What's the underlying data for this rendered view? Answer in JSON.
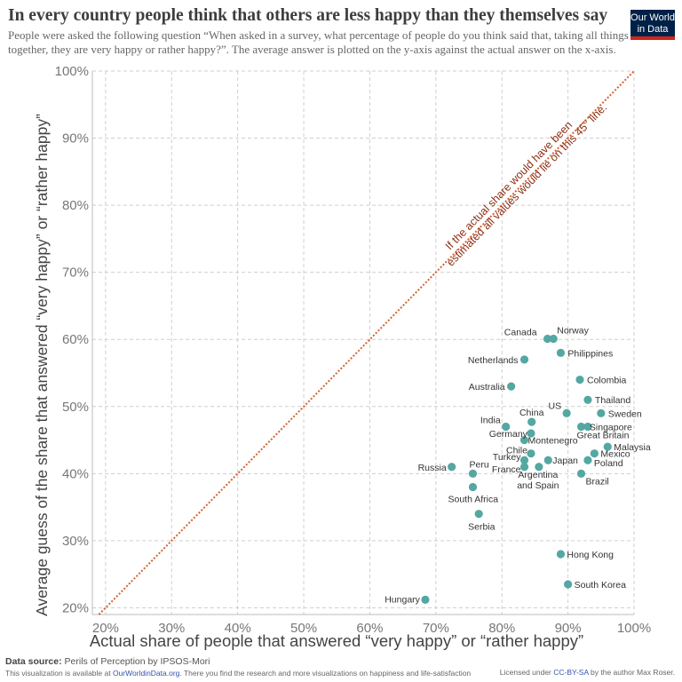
{
  "header": {
    "title": "In every country people think that others are less happy than they themselves say",
    "subtitle": "People were asked the following question “When asked in a survey, what percentage of people do you think said that, taking all things together, they are very happy or rather happy?”. The average answer is plotted on the y-axis against the actual answer on the x-axis.",
    "logo_line1": "Our World",
    "logo_line2": "in Data"
  },
  "footer": {
    "source_label": "Data source:",
    "source_text": "Perils of Perception by IPSOS-Mori",
    "avail_prefix": "This visualization is available at",
    "avail_link": "OurWorldinData.org",
    "avail_suffix": ". There you find the research and more visualizations on happiness and life-satisfaction",
    "license_prefix": "Licensed under",
    "license_link": "CC-BY-SA",
    "license_suffix": "by the author Max Roser."
  },
  "colors": {
    "point": "#55a7a2",
    "diagonal": "#d4622e",
    "annotation": "#8b2e12",
    "grid": "#cfcfcf"
  },
  "chart_data": {
    "type": "scatter",
    "xlabel": "Actual share of people that answered “very happy” or “rather happy”",
    "ylabel": "Average guess of the share that answered “very happy” or “rather happy”",
    "xlim": [
      18,
      100
    ],
    "ylim": [
      19,
      100
    ],
    "x_ticks": [
      20,
      30,
      40,
      50,
      60,
      70,
      80,
      90,
      100
    ],
    "y_ticks": [
      20,
      30,
      40,
      50,
      60,
      70,
      80,
      90,
      100
    ],
    "tick_suffix": "%",
    "grid": true,
    "reference_line": {
      "type": "y=x",
      "annotation_line1": "If the actual share would have been",
      "annotation_line2": "estimated all values would lie on this 45° line."
    },
    "points": [
      {
        "name": "Canada",
        "x": 86.9,
        "y": 60.1
      },
      {
        "name": "Norway",
        "x": 87.8,
        "y": 60.1
      },
      {
        "name": "Philippines",
        "x": 88.9,
        "y": 58.0
      },
      {
        "name": "Netherlands",
        "x": 83.4,
        "y": 57.0
      },
      {
        "name": "Australia",
        "x": 81.4,
        "y": 53.0
      },
      {
        "name": "Colombia",
        "x": 91.8,
        "y": 54.0
      },
      {
        "name": "Thailand",
        "x": 93.0,
        "y": 51.0
      },
      {
        "name": "US",
        "x": 89.8,
        "y": 49.0
      },
      {
        "name": "Sweden",
        "x": 95.0,
        "y": 49.0
      },
      {
        "name": "China",
        "x": 84.5,
        "y": 47.7
      },
      {
        "name": "India",
        "x": 80.6,
        "y": 47.0
      },
      {
        "name": "Great Britain",
        "x": 92.0,
        "y": 47.0
      },
      {
        "name": "Singapore",
        "x": 93.0,
        "y": 47.0
      },
      {
        "name": "Germany",
        "x": 84.4,
        "y": 46.0
      },
      {
        "name": "Montenegro",
        "x": 83.4,
        "y": 45.0
      },
      {
        "name": "Malaysia",
        "x": 96.0,
        "y": 44.0
      },
      {
        "name": "Chile",
        "x": 84.4,
        "y": 43.0
      },
      {
        "name": "Mexico",
        "x": 94.0,
        "y": 43.0
      },
      {
        "name": "Turkey",
        "x": 83.4,
        "y": 42.0
      },
      {
        "name": "Japan",
        "x": 87.0,
        "y": 42.0
      },
      {
        "name": "Poland",
        "x": 93.0,
        "y": 42.0
      },
      {
        "name": "France",
        "x": 83.4,
        "y": 41.0
      },
      {
        "name": "Argentina and Spain",
        "x": 85.6,
        "y": 41.0
      },
      {
        "name": "Russia",
        "x": 72.4,
        "y": 41.0
      },
      {
        "name": "Peru",
        "x": 75.6,
        "y": 40.0
      },
      {
        "name": "Brazil",
        "x": 92.0,
        "y": 40.0
      },
      {
        "name": "South Africa",
        "x": 75.6,
        "y": 38.0
      },
      {
        "name": "Serbia",
        "x": 76.5,
        "y": 34.0
      },
      {
        "name": "Hong Kong",
        "x": 88.9,
        "y": 28.0
      },
      {
        "name": "South Korea",
        "x": 90.0,
        "y": 23.5
      },
      {
        "name": "Hungary",
        "x": 68.4,
        "y": 21.2
      }
    ]
  }
}
